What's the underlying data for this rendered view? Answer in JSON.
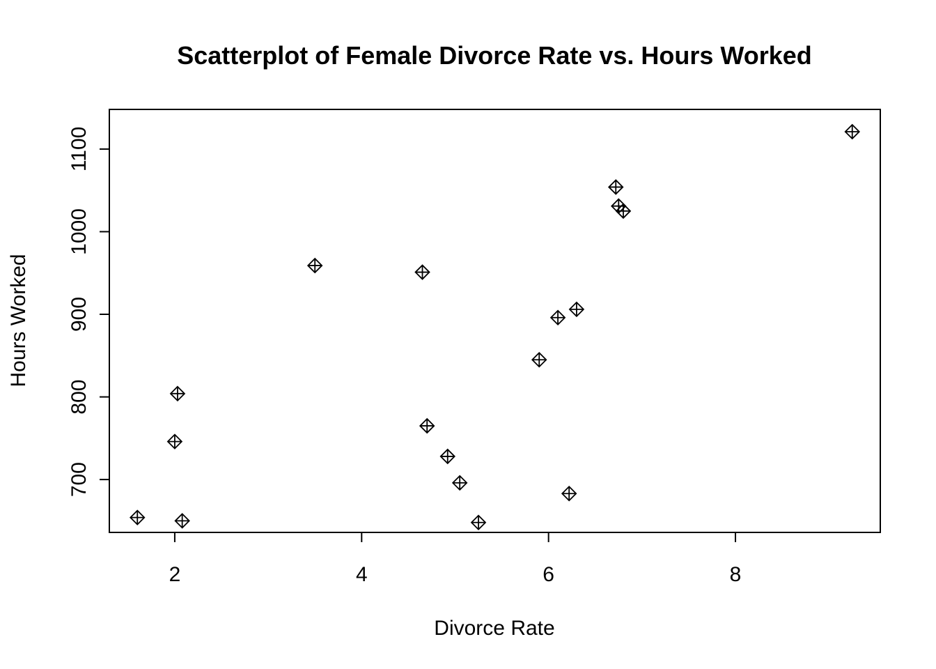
{
  "chart_data": {
    "type": "scatter",
    "title": "Scatterplot of Female Divorce Rate vs. Hours Worked",
    "xlabel": "Divorce Rate",
    "ylabel": "Hours Worked",
    "xlim": [
      1.3,
      9.55
    ],
    "ylim": [
      636,
      1148
    ],
    "xticks": [
      2,
      4,
      6,
      8
    ],
    "yticks": [
      700,
      800,
      900,
      1000,
      1100
    ],
    "grid": false,
    "marker": "diamond-plus",
    "points": [
      {
        "x": 1.6,
        "y": 654
      },
      {
        "x": 2.0,
        "y": 746
      },
      {
        "x": 2.03,
        "y": 804
      },
      {
        "x": 2.08,
        "y": 650
      },
      {
        "x": 3.5,
        "y": 959
      },
      {
        "x": 4.65,
        "y": 951
      },
      {
        "x": 4.7,
        "y": 765
      },
      {
        "x": 4.92,
        "y": 728
      },
      {
        "x": 5.05,
        "y": 696
      },
      {
        "x": 5.25,
        "y": 648
      },
      {
        "x": 5.9,
        "y": 845
      },
      {
        "x": 6.1,
        "y": 896
      },
      {
        "x": 6.22,
        "y": 683
      },
      {
        "x": 6.3,
        "y": 906
      },
      {
        "x": 6.72,
        "y": 1054
      },
      {
        "x": 6.75,
        "y": 1031
      },
      {
        "x": 6.8,
        "y": 1025
      },
      {
        "x": 9.25,
        "y": 1121
      }
    ]
  }
}
